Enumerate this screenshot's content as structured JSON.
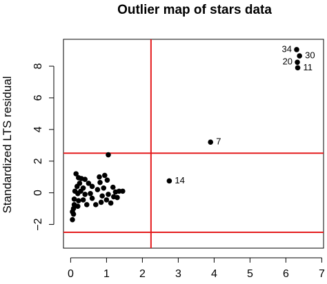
{
  "chart_data": {
    "type": "scatter",
    "title": "Outlier map of stars data",
    "xlabel": "",
    "ylabel": "Standardized LTS residual",
    "xlim": [
      -0.2,
      7.05
    ],
    "ylim": [
      -3.5,
      9.7
    ],
    "x_ticks": [
      0,
      1,
      2,
      3,
      4,
      5,
      6,
      7
    ],
    "y_ticks": [
      -2,
      0,
      2,
      4,
      6,
      8
    ],
    "grid": false,
    "colors": {
      "points": "#000000",
      "cutoff_lines": "#e41a1c"
    },
    "cutoffs": {
      "horizontal": [
        2.5,
        -2.5
      ],
      "vertical": [
        2.24
      ]
    },
    "points": [
      {
        "x": 6.3,
        "y": 9.05,
        "label": "34"
      },
      {
        "x": 6.38,
        "y": 8.65,
        "label": "30"
      },
      {
        "x": 6.32,
        "y": 8.25,
        "label": "20"
      },
      {
        "x": 6.33,
        "y": 7.9,
        "label": "11"
      },
      {
        "x": 3.9,
        "y": 3.2,
        "label": "7"
      },
      {
        "x": 2.75,
        "y": 0.75,
        "label": "14"
      },
      {
        "x": 1.05,
        "y": 2.4
      },
      {
        "x": 0.15,
        "y": 1.2
      },
      {
        "x": 0.22,
        "y": 0.95
      },
      {
        "x": 0.3,
        "y": 0.9
      },
      {
        "x": 0.4,
        "y": 0.85
      },
      {
        "x": 0.25,
        "y": 0.6
      },
      {
        "x": 0.18,
        "y": 0.4
      },
      {
        "x": 0.35,
        "y": 0.3
      },
      {
        "x": 0.5,
        "y": 0.6
      },
      {
        "x": 0.6,
        "y": 0.4
      },
      {
        "x": 0.12,
        "y": 0.1
      },
      {
        "x": 0.2,
        "y": -0.05
      },
      {
        "x": 0.28,
        "y": 0.1
      },
      {
        "x": 0.4,
        "y": -0.1
      },
      {
        "x": 0.55,
        "y": -0.05
      },
      {
        "x": 0.1,
        "y": -0.4
      },
      {
        "x": 0.22,
        "y": -0.5
      },
      {
        "x": 0.1,
        "y": -0.75
      },
      {
        "x": 0.2,
        "y": -0.85
      },
      {
        "x": 0.08,
        "y": -1.0
      },
      {
        "x": 0.05,
        "y": -1.2
      },
      {
        "x": 0.08,
        "y": -1.35
      },
      {
        "x": 0.05,
        "y": -1.7
      },
      {
        "x": 0.35,
        "y": -0.45
      },
      {
        "x": 0.45,
        "y": -0.75
      },
      {
        "x": 0.6,
        "y": -0.35
      },
      {
        "x": 0.7,
        "y": -0.75
      },
      {
        "x": 0.75,
        "y": 0.2
      },
      {
        "x": 0.82,
        "y": 0.65
      },
      {
        "x": 0.8,
        "y": 1.0
      },
      {
        "x": 0.95,
        "y": 1.1
      },
      {
        "x": 0.92,
        "y": 0.3
      },
      {
        "x": 1.02,
        "y": 0.8
      },
      {
        "x": 0.88,
        "y": -0.2
      },
      {
        "x": 0.85,
        "y": -0.6
      },
      {
        "x": 1.0,
        "y": -0.45
      },
      {
        "x": 1.05,
        "y": -0.1
      },
      {
        "x": 1.12,
        "y": -0.65
      },
      {
        "x": 1.2,
        "y": -0.25
      },
      {
        "x": 1.18,
        "y": 0.35
      },
      {
        "x": 1.25,
        "y": 0.05
      },
      {
        "x": 1.3,
        "y": -0.3
      },
      {
        "x": 1.35,
        "y": 0.1
      },
      {
        "x": 1.45,
        "y": 0.1
      }
    ]
  }
}
